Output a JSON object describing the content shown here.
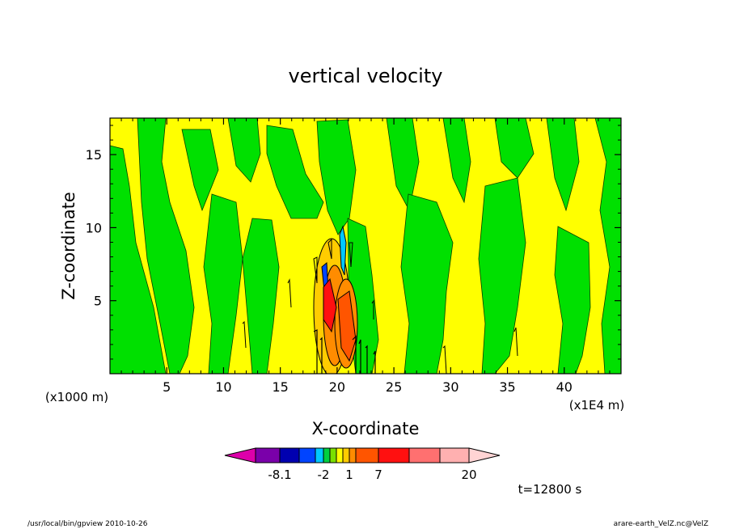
{
  "chart_data": {
    "type": "heatmap",
    "title": "vertical velocity",
    "xlabel": "X-coordinate",
    "ylabel": "Z-coordinate",
    "x_unit_label": "(x1E4 m)",
    "y_unit_label": "(x1000 m)",
    "xlim": [
      0,
      45
    ],
    "ylim": [
      0,
      17.5
    ],
    "x_ticks": [
      "5",
      "10",
      "15",
      "20",
      "25",
      "30",
      "35",
      "40"
    ],
    "y_ticks": [
      "5",
      "10",
      "15"
    ],
    "x_tick_values": [
      5,
      10,
      15,
      20,
      25,
      30,
      35,
      40
    ],
    "y_tick_values": [
      5,
      10,
      15
    ],
    "colorbar": {
      "colors": [
        "#dd00aa",
        "#7a00aa",
        "#0000b0",
        "#0044ff",
        "#00c8ff",
        "#00d040",
        "#7ae000",
        "#ffff00",
        "#ffcc00",
        "#ff8c00",
        "#ff5500",
        "#ff1010",
        "#ff7070",
        "#ffb0b0",
        "#ffd4d4"
      ],
      "labels": [
        "-8.1",
        "-2",
        "1",
        "7",
        "20"
      ]
    },
    "timestamp": "t=12800 s"
  },
  "footer": {
    "left": "/usr/local/bin/gpview  2010-10-26",
    "right": "arare-earth_VelZ.nc@VelZ"
  }
}
